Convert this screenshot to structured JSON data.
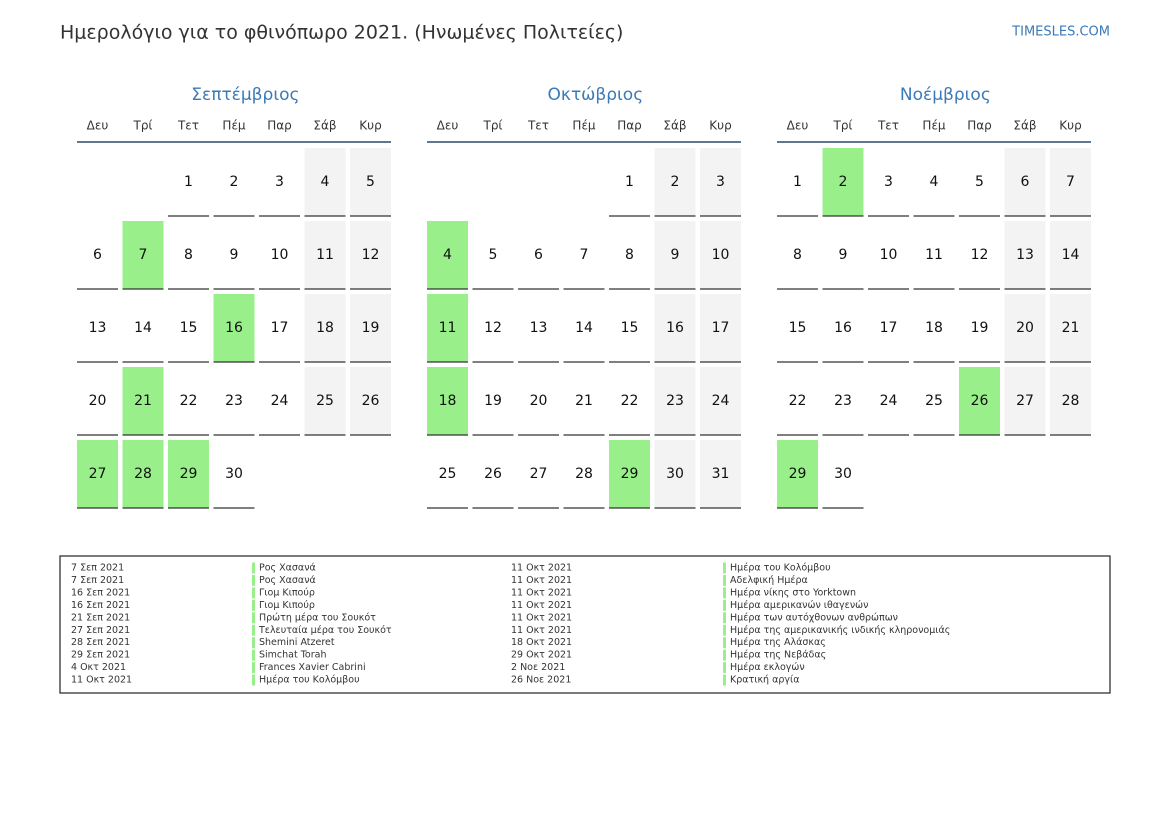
{
  "header": {
    "title": "Ημερολόγιο για το φθινόπωρο 2021. (Ηνωμένες Πολιτείες)",
    "site": "TIMESLES.COM"
  },
  "weekdays": [
    "Δευ",
    "Τρί",
    "Τετ",
    "Πέμ",
    "Παρ",
    "Σάβ",
    "Κυρ"
  ],
  "months": [
    {
      "name": "Σεπτέμβριος",
      "weeks": [
        [
          null,
          null,
          1,
          2,
          3,
          4,
          5
        ],
        [
          6,
          7,
          8,
          9,
          10,
          11,
          12
        ],
        [
          13,
          14,
          15,
          16,
          17,
          18,
          19
        ],
        [
          20,
          21,
          22,
          23,
          24,
          25,
          26
        ],
        [
          27,
          28,
          29,
          30,
          null,
          null,
          null
        ]
      ],
      "highlight": [
        7,
        16,
        21,
        27,
        28,
        29
      ]
    },
    {
      "name": "Οκτώβριος",
      "weeks": [
        [
          null,
          null,
          null,
          null,
          1,
          2,
          3
        ],
        [
          4,
          5,
          6,
          7,
          8,
          9,
          10
        ],
        [
          11,
          12,
          13,
          14,
          15,
          16,
          17
        ],
        [
          18,
          19,
          20,
          21,
          22,
          23,
          24
        ],
        [
          25,
          26,
          27,
          28,
          29,
          30,
          31
        ]
      ],
      "highlight": [
        4,
        11,
        18,
        29
      ]
    },
    {
      "name": "Νοέμβριος",
      "weeks": [
        [
          1,
          2,
          3,
          4,
          5,
          6,
          7
        ],
        [
          8,
          9,
          10,
          11,
          12,
          13,
          14
        ],
        [
          15,
          16,
          17,
          18,
          19,
          20,
          21
        ],
        [
          22,
          23,
          24,
          25,
          26,
          27,
          28
        ],
        [
          29,
          30,
          null,
          null,
          null,
          null,
          null
        ]
      ],
      "highlight": [
        2,
        26,
        29
      ]
    }
  ],
  "holidays": [
    {
      "date": "7 Σεπ 2021",
      "name": "Ρος Χασανά"
    },
    {
      "date": "7 Σεπ 2021",
      "name": "Ρος Χασανά"
    },
    {
      "date": "16 Σεπ 2021",
      "name": "Γιομ Κιπούρ"
    },
    {
      "date": "16 Σεπ 2021",
      "name": "Γιομ Κιπούρ"
    },
    {
      "date": "21 Σεπ 2021",
      "name": "Πρώτη μέρα του Σουκότ"
    },
    {
      "date": "27 Σεπ 2021",
      "name": "Τελευταία μέρα του Σουκότ"
    },
    {
      "date": "28 Σεπ 2021",
      "name": "Shemini Atzeret"
    },
    {
      "date": "29 Σεπ 2021",
      "name": "Simchat Torah"
    },
    {
      "date": "4 Οκτ 2021",
      "name": "Frances Xavier Cabrini"
    },
    {
      "date": "11 Οκτ 2021",
      "name": "Ημέρα του Κολόμβου"
    },
    {
      "date": "11 Οκτ 2021",
      "name": "Ημέρα του Κολόμβου"
    },
    {
      "date": "11 Οκτ 2021",
      "name": "Αδελφική Ημέρα"
    },
    {
      "date": "11 Οκτ 2021",
      "name": "Ημέρα νίκης στο Yorktown"
    },
    {
      "date": "11 Οκτ 2021",
      "name": "Ημέρα αμερικανών ιθαγενών"
    },
    {
      "date": "11 Οκτ 2021",
      "name": "Ημέρα των αυτόχθονων ανθρώπων"
    },
    {
      "date": "11 Οκτ 2021",
      "name": "Ημέρα της αμερικανικής ινδικής κληρονομιάς"
    },
    {
      "date": "18 Οκτ 2021",
      "name": "Ημέρα της Αλάσκας"
    },
    {
      "date": "29 Οκτ 2021",
      "name": "Ημέρα της Νεβάδας"
    },
    {
      "date": "2 Νοε 2021",
      "name": "Ημέρα εκλογών"
    },
    {
      "date": "26 Νοε 2021",
      "name": "Κρατική αργία"
    }
  ]
}
